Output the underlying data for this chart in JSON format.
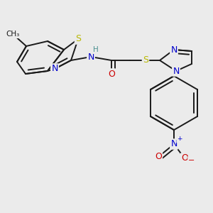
{
  "bg_color": "#ebebeb",
  "bond_color": "#1a1a1a",
  "bond_width": 1.4,
  "atom_colors": {
    "S": "#b8b800",
    "N": "#0000cc",
    "O": "#cc0000",
    "H": "#4a9090",
    "C": "#1a1a1a"
  },
  "font_size_atom": 8.5
}
